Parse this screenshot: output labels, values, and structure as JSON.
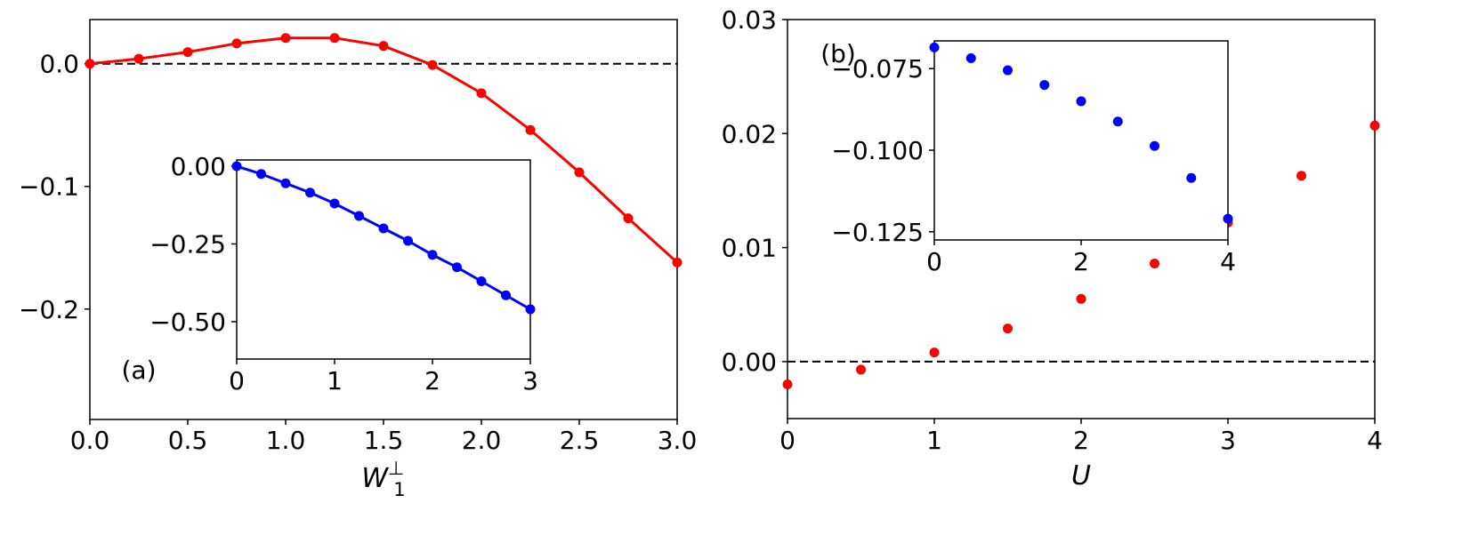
{
  "chart_data": [
    {
      "type": "line",
      "panel_label": "(a)",
      "xlabel": "W",
      "xlabel_sub": "1",
      "xlabel_sup": "⊥",
      "ylabel": "",
      "xlim": [
        0.0,
        3.0
      ],
      "ylim": [
        -0.29,
        0.036
      ],
      "xticks": [
        "0.0",
        "0.5",
        "1.0",
        "1.5",
        "2.0",
        "2.5",
        "3.0"
      ],
      "yticks": [
        "0.0",
        "−0.1",
        "−0.2"
      ],
      "reference_line": {
        "y": 0.0,
        "style": "dashed",
        "color": "#000000"
      },
      "series": [
        {
          "color": "#ff0000",
          "x": [
            0.0,
            0.25,
            0.5,
            0.75,
            1.0,
            1.25,
            1.5,
            1.75,
            2.0,
            2.25,
            2.5,
            2.75,
            3.0
          ],
          "y": [
            0.0,
            0.004,
            0.0095,
            0.0165,
            0.021,
            0.021,
            0.0145,
            -0.001,
            -0.024,
            -0.054,
            -0.0885,
            -0.126,
            -0.162
          ]
        }
      ],
      "inset": {
        "type": "line",
        "xlim": [
          0,
          3
        ],
        "ylim": [
          -0.62,
          0.02
        ],
        "xticks": [
          "0",
          "1",
          "2",
          "3"
        ],
        "yticks": [
          "0.00",
          "−0.25",
          "−0.50"
        ],
        "series": [
          {
            "color": "#0000ff",
            "x": [
              0.0,
              0.25,
              0.5,
              0.75,
              1.0,
              1.25,
              1.5,
              1.75,
              2.0,
              2.25,
              2.5,
              2.75,
              3.0
            ],
            "y": [
              0.0,
              -0.025,
              -0.055,
              -0.085,
              -0.12,
              -0.16,
              -0.2,
              -0.24,
              -0.285,
              -0.325,
              -0.37,
              -0.415,
              -0.46
            ]
          }
        ]
      }
    },
    {
      "type": "line",
      "panel_label": "(b)",
      "xlabel": "U",
      "ylabel": "",
      "xlim": [
        0,
        4
      ],
      "ylim": [
        -0.005,
        0.03
      ],
      "xticks": [
        "0",
        "1",
        "2",
        "3",
        "4"
      ],
      "yticks": [
        "0.03",
        "0.02",
        "0.01",
        "0.00"
      ],
      "reference_line": {
        "y": 0.0,
        "style": "dashed",
        "color": "#000000"
      },
      "series": [
        {
          "color": "#ff0000",
          "x": [
            0.0,
            0.5,
            1.0,
            1.5,
            2.0,
            2.5,
            3.0,
            3.5,
            4.0
          ],
          "y": [
            -0.002,
            -0.0007,
            0.0008,
            0.0029,
            0.0055,
            0.0086,
            0.0122,
            0.0163,
            0.0207
          ]
        }
      ],
      "inset": {
        "type": "line",
        "xlim": [
          0,
          4
        ],
        "ylim": [
          -0.1275,
          -0.0665
        ],
        "xticks": [
          "0",
          "2",
          "4"
        ],
        "yticks": [
          "−0.075",
          "−0.100",
          "−0.125"
        ],
        "series": [
          {
            "color": "#0000ff",
            "x": [
              0.0,
              0.5,
              1.0,
              1.5,
              2.0,
              2.5,
              3.0,
              3.5,
              4.0
            ],
            "y": [
              -0.0685,
              -0.0718,
              -0.0755,
              -0.08,
              -0.085,
              -0.0912,
              -0.0987,
              -0.1085,
              -0.121
            ]
          }
        ]
      }
    }
  ]
}
